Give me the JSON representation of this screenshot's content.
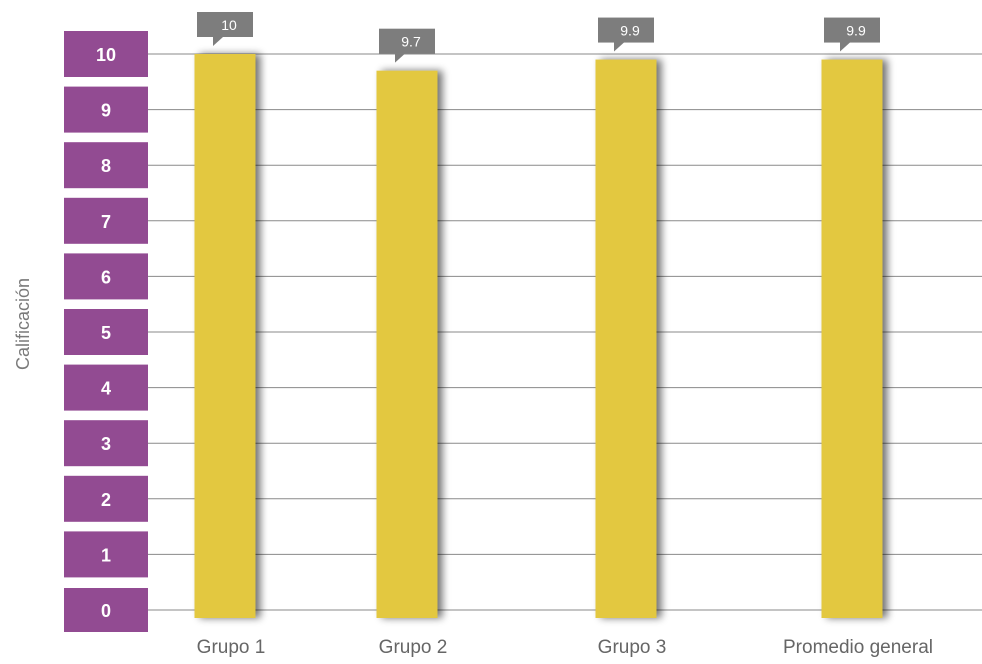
{
  "chart_data": {
    "type": "bar",
    "ylabel": "Calificación",
    "xlabel": "",
    "categories": [
      "Grupo 1",
      "Grupo 2",
      "Grupo 3",
      "Promedio general"
    ],
    "values": [
      10,
      9.7,
      9.9,
      9.9
    ],
    "value_labels": [
      "10",
      "9.7",
      "9.9",
      "9.9"
    ],
    "ylim": [
      0,
      10
    ],
    "yticks": [
      "0",
      "1",
      "2",
      "3",
      "4",
      "5",
      "6",
      "7",
      "8",
      "9",
      "10"
    ],
    "grid": true,
    "colors": {
      "bar": "#e3c840",
      "tick_box": "#924b92",
      "label_box": "#7d7d7d",
      "grid": "#8a8a8a"
    }
  }
}
